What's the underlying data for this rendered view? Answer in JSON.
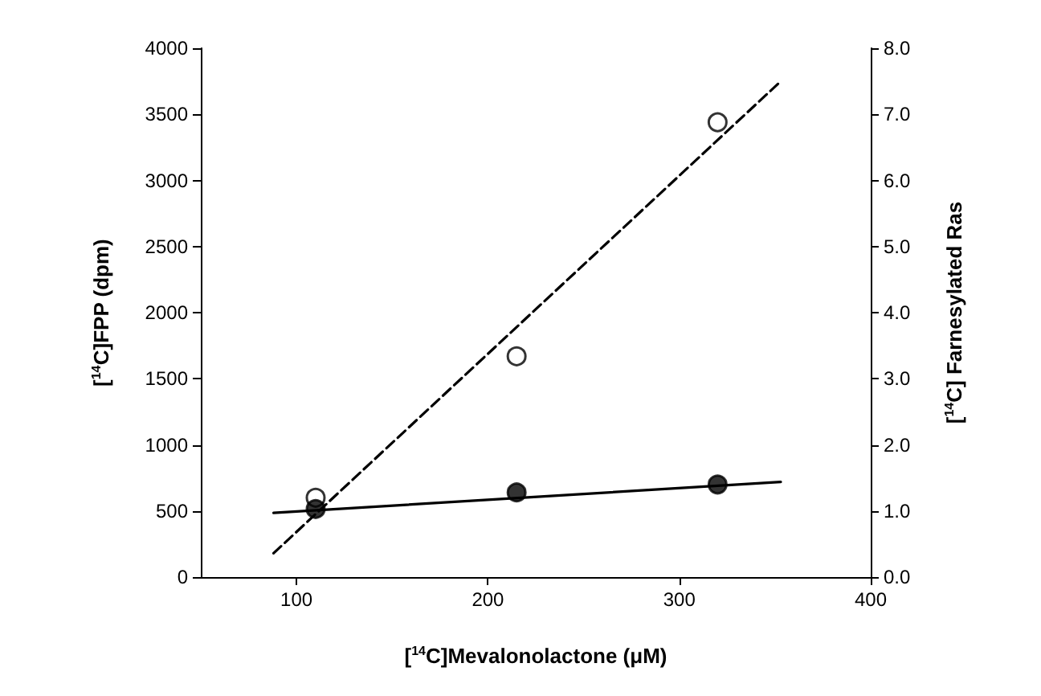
{
  "chart_data": {
    "type": "scatter",
    "xlabel": "[$^{14}$C]Mevalonolactone (μM)",
    "ylabel": "[$^{14}$C]FPP (dpm)",
    "y2label": "[$^{14}$C] Farnesylated Ras",
    "xlim": [
      50,
      400
    ],
    "xticks": [
      100,
      200,
      300,
      400
    ],
    "ylim": [
      0,
      4000
    ],
    "yticks": [
      0,
      500,
      1000,
      1500,
      2000,
      2500,
      3000,
      3500,
      4000
    ],
    "y2lim": [
      0,
      8
    ],
    "y2ticks": [
      {
        "value": 0,
        "label": "0.0"
      },
      {
        "value": 1,
        "label": "1.0"
      },
      {
        "value": 2,
        "label": "2.0"
      },
      {
        "value": 3,
        "label": "3.0"
      },
      {
        "value": 4,
        "label": "4.0"
      },
      {
        "value": 5,
        "label": "5.0"
      },
      {
        "value": 6,
        "label": "6.0"
      },
      {
        "value": 7,
        "label": "7.0"
      },
      {
        "value": 8,
        "label": "8.0"
      }
    ],
    "marker": "circle",
    "grid": false,
    "series": [
      {
        "color": "#ffffff",
        "x": [
          110,
          215,
          320
        ],
        "values": [
          600,
          1670,
          3440
        ]
      },
      {
        "color": "#000000",
        "axis": "y2",
        "x": [
          110,
          215,
          320
        ],
        "values": [
          1.03,
          1.28,
          1.4
        ]
      },
      {
        "type": "line",
        "color": "#000000",
        "line_style": "dashed",
        "marker": "none",
        "x": [
          88,
          353
        ],
        "values": [
          180,
          3750
        ]
      },
      {
        "type": "line",
        "color": "#000000",
        "line_style": "solid",
        "marker": "none",
        "axis": "y2",
        "x": [
          88,
          353
        ],
        "values": [
          0.97,
          1.44
        ]
      }
    ]
  }
}
